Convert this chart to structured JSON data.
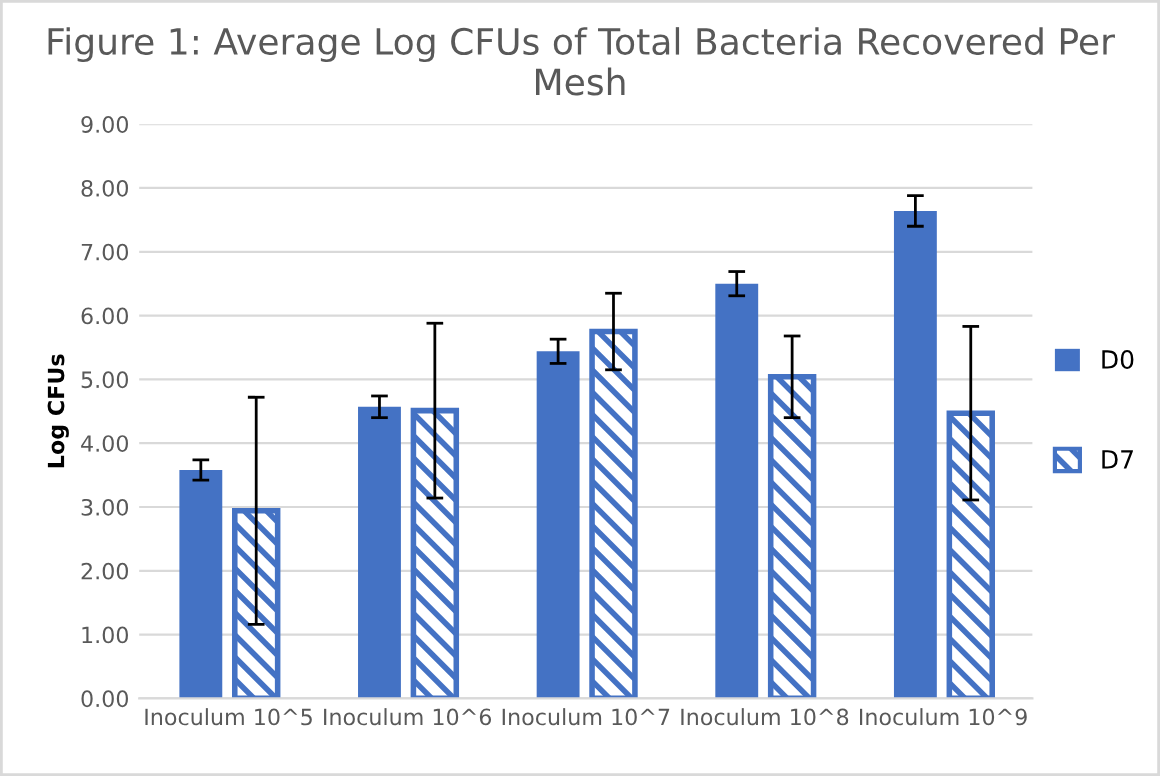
{
  "chart_data": {
    "type": "bar",
    "title": "Figure 1: Average Log CFUs of Total Bacteria Recovered Per Mesh",
    "ylabel": "Log CFUs",
    "categories": [
      "Inoculum 10^5",
      "Inoculum 10^6",
      "Inoculum 10^7",
      "Inoculum 10^8",
      "Inoculum 10^9"
    ],
    "series": [
      {
        "name": "D0",
        "color": "#4472c4",
        "values": [
          3.58,
          4.57,
          5.44,
          6.5,
          7.64
        ],
        "errors": [
          0.16,
          0.17,
          0.19,
          0.19,
          0.24
        ]
      },
      {
        "name": "D7",
        "color": "#4472c4",
        "values": [
          2.94,
          4.51,
          5.75,
          5.04,
          4.47
        ],
        "errors": [
          1.78,
          1.37,
          0.6,
          0.64,
          1.36
        ]
      }
    ],
    "ylim": [
      0,
      9
    ],
    "yticks": [
      {
        "value": 0,
        "label": "0.00"
      },
      {
        "value": 1,
        "label": "1.00"
      },
      {
        "value": 2,
        "label": "2.00"
      },
      {
        "value": 3,
        "label": "3.00"
      },
      {
        "value": 4,
        "label": "4.00"
      },
      {
        "value": 5,
        "label": "5.00"
      },
      {
        "value": 6,
        "label": "6.00"
      },
      {
        "value": 7,
        "label": "7.00"
      },
      {
        "value": 8,
        "label": "8.00"
      },
      {
        "value": 9,
        "label": "9.00"
      }
    ],
    "grid": "y",
    "legend": "right"
  }
}
